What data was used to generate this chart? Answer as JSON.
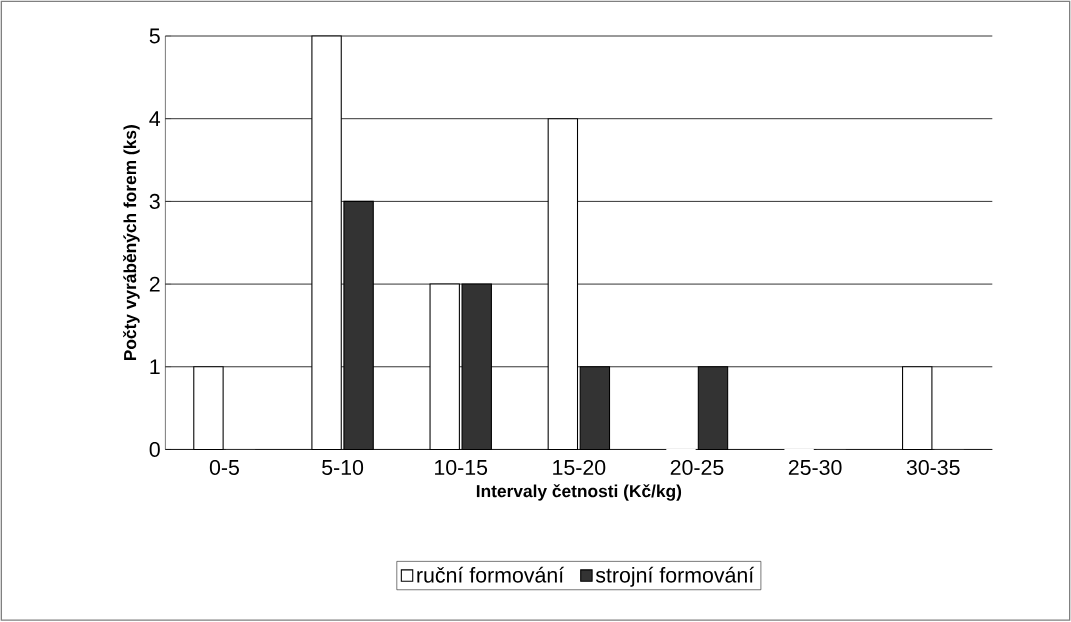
{
  "chart_data": {
    "type": "bar",
    "xlabel": "Intervaly četnosti (Kč/kg)",
    "ylabel": "Počty vyráběných forem (ks)",
    "categories": [
      "0-5",
      "5-10",
      "10-15",
      "15-20",
      "20-25",
      "25-30",
      "30-35"
    ],
    "series": [
      {
        "name": "ruční formování",
        "color": "#ffffff",
        "values": [
          1,
          5,
          2,
          4,
          0,
          0,
          1
        ]
      },
      {
        "name": "strojní formování",
        "color": "#333333",
        "values": [
          0,
          3,
          2,
          1,
          1,
          0,
          0
        ]
      }
    ],
    "ylim": [
      0,
      5
    ],
    "yticks": [
      0,
      1,
      2,
      3,
      4,
      5
    ],
    "grid": "y",
    "legend": "bottom"
  }
}
